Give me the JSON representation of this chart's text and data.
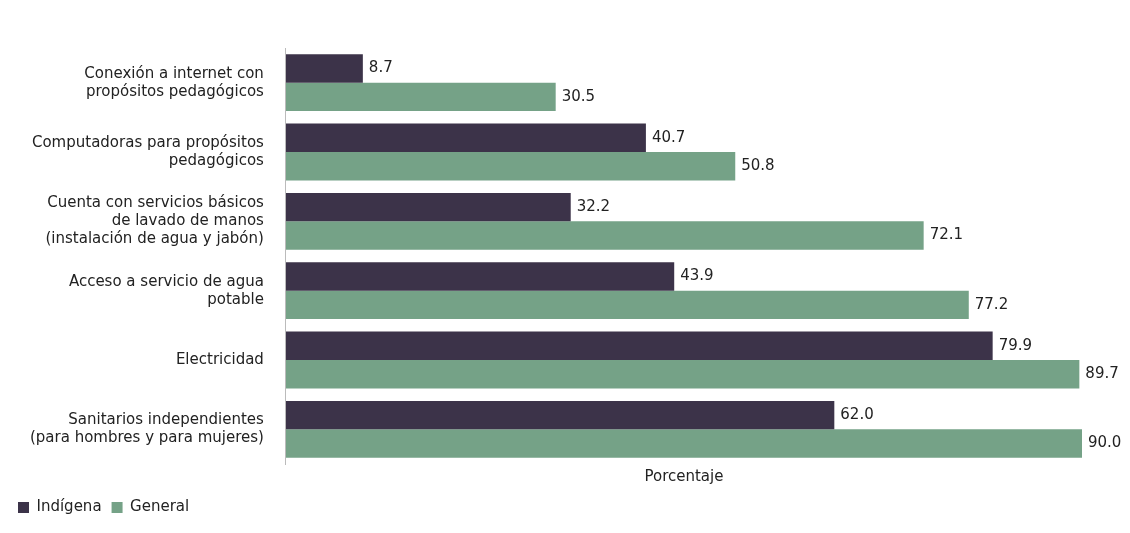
{
  "chart_data": {
    "type": "bar",
    "orientation": "horizontal",
    "relative": false,
    "categories": [
      "Conexión a internet con propósitos pedagógicos",
      "Computadoras para propósitos pedagógicos",
      "Cuenta con servicios básicos de lavado de manos (instalación de agua y jabón)",
      "Acceso a servicio de agua potable",
      "Electricidad",
      "Sanitarios independientes (para hombres y para mujeres)"
    ],
    "series": [
      {
        "name": "Indígena",
        "color": "#3c3349",
        "values": [
          8.7,
          40.7,
          32.2,
          43.9,
          79.9,
          62.0
        ],
        "value_labels": [
          "8.7",
          "40.7",
          "32.2",
          "43.9",
          "79.9",
          "62.0"
        ]
      },
      {
        "name": "General",
        "color": "#75a287",
        "values": [
          30.5,
          50.8,
          72.1,
          77.2,
          89.7,
          90.0
        ],
        "value_labels": [
          "30.5",
          "50.8",
          "72.1",
          "77.2",
          "89.7",
          "90.0"
        ]
      }
    ],
    "xlabel": "Porcentaje",
    "legend": "bottom left",
    "grid": false
  }
}
